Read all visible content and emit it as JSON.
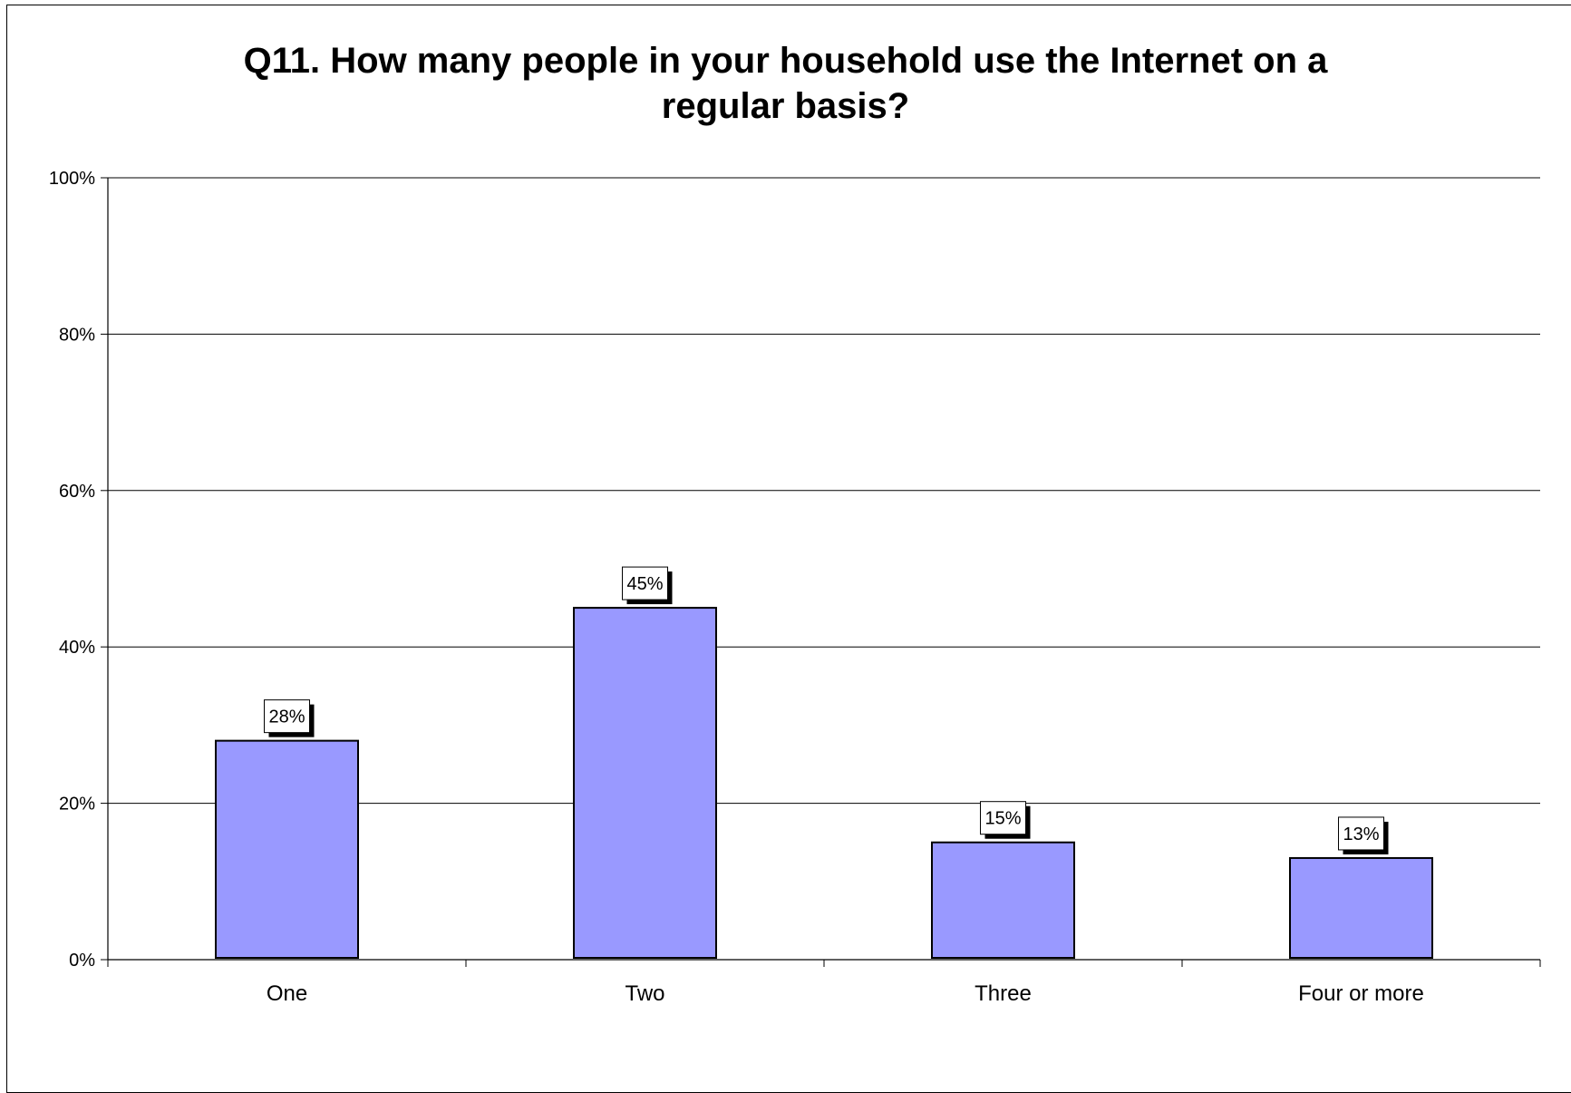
{
  "chart_data": {
    "type": "bar",
    "title_lines": [
      "Q11.  How many people in your household use the Internet on a",
      "regular basis?"
    ],
    "categories": [
      "One",
      "Two",
      "Three",
      "Four or more"
    ],
    "values": [
      28,
      45,
      15,
      13
    ],
    "data_labels": [
      "28%",
      "45%",
      "15%",
      "13%"
    ],
    "ylim": [
      0,
      100
    ],
    "y_ticks": [
      0,
      20,
      40,
      60,
      80,
      100
    ],
    "y_tick_labels": [
      "0%",
      "20%",
      "40%",
      "60%",
      "80%",
      "100%"
    ],
    "grid": true,
    "legend": "none",
    "bar_color": "#9999ff",
    "bar_border_color": "#000000",
    "gridline_color": "#000000"
  }
}
